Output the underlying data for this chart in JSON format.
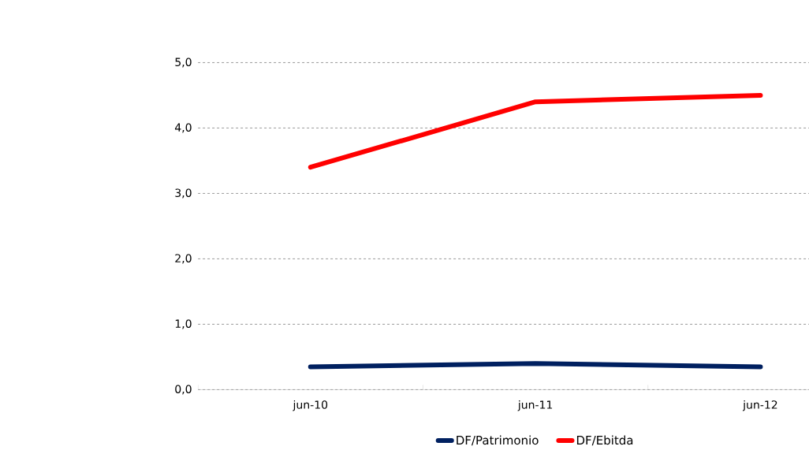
{
  "chart_data": {
    "type": "line",
    "categories": [
      "jun-10",
      "jun-11",
      "jun-12"
    ],
    "series": [
      {
        "name": "DF/Patrimonio",
        "color": "#002060",
        "values": [
          0.35,
          0.4,
          0.35
        ]
      },
      {
        "name": "DF/Ebitda",
        "color": "#ff0000",
        "values": [
          3.4,
          4.4,
          4.5
        ]
      }
    ],
    "ylim": [
      0,
      5
    ],
    "yticks": [
      {
        "value": 0,
        "label": "0,0"
      },
      {
        "value": 1,
        "label": "1,0"
      },
      {
        "value": 2,
        "label": "2,0"
      },
      {
        "value": 3,
        "label": "3,0"
      },
      {
        "value": 4,
        "label": "4,0"
      },
      {
        "value": 5,
        "label": "5,0"
      }
    ],
    "grid": "y",
    "legend": "bottom",
    "marker": "none",
    "line_style": "solid"
  }
}
